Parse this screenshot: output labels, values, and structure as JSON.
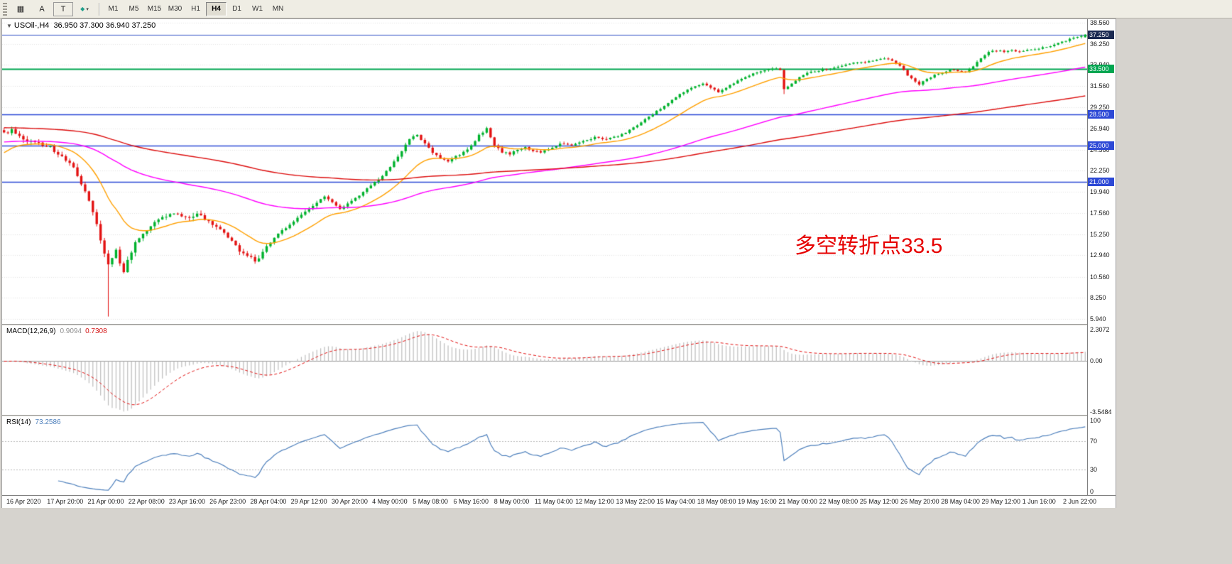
{
  "toolbar": {
    "tools": [
      {
        "id": "new-order",
        "glyph": "▦"
      },
      {
        "id": "cursor",
        "glyph": "A"
      },
      {
        "id": "text",
        "glyph": "T"
      },
      {
        "id": "objects",
        "glyph": "◆",
        "caret": "▾"
      }
    ],
    "timeframes": [
      "M1",
      "M5",
      "M15",
      "M30",
      "H1",
      "H4",
      "D1",
      "W1",
      "MN"
    ],
    "active_timeframe": "H4"
  },
  "chart": {
    "title_symbol": "USOil-,H4",
    "title_ohlc": "36.950 37.300 36.940 37.250",
    "annotation": {
      "text": "多空转折点33.5",
      "color": "#e60000"
    }
  },
  "colors": {
    "up": "#00b22d",
    "down": "#e31212",
    "grid": "#e3e3e3",
    "macd_hist": "#bdbdbd",
    "macd_signal": "#e31212",
    "rsi_line": "#4f81bd",
    "level_dotted": "#b9b9b9",
    "zero_line": "#9a9a9a"
  },
  "chart_data": {
    "type": "candlestick",
    "symbol": "USOil-",
    "timeframe": "H4",
    "title": "USOil-,H4 36.950 37.300 36.940 37.250",
    "current_candle": {
      "open": 36.95,
      "high": 37.3,
      "low": 36.94,
      "close": 37.25
    },
    "candle_count": 281,
    "y_range": [
      5.39,
      38.95
    ],
    "y_ticks": [
      "38.560",
      "36.250",
      "33.940",
      "31.560",
      "29.250",
      "26.940",
      "24.560",
      "22.250",
      "19.940",
      "17.560",
      "15.250",
      "12.940",
      "10.560",
      "8.250",
      "5.940"
    ],
    "x_labels": [
      "16 Apr 2020",
      "17 Apr 20:00",
      "21 Apr 00:00",
      "22 Apr 08:00",
      "23 Apr 16:00",
      "26 Apr 23:00",
      "28 Apr 04:00",
      "29 Apr 12:00",
      "30 Apr 20:00",
      "4 May 00:00",
      "5 May 08:00",
      "6 May 16:00",
      "8 May 00:00",
      "11 May 04:00",
      "12 May 12:00",
      "13 May 22:00",
      "15 May 04:00",
      "18 May 08:00",
      "19 May 16:00",
      "21 May 00:00",
      "22 May 08:00",
      "25 May 12:00",
      "26 May 20:00",
      "28 May 04:00",
      "29 May 12:00",
      "1 Jun 16:00",
      "2 Jun 22:00"
    ],
    "hlines": [
      {
        "price": 37.25,
        "label": "37.250",
        "color": "#3a57c9",
        "bg": "#1b2a52",
        "width": 1
      },
      {
        "price": 33.5,
        "label": "33.500",
        "color": "#00a651",
        "bg": "#00a651",
        "width": 2
      },
      {
        "price": 28.5,
        "label": "28.500",
        "color": "#2d49d6",
        "bg": "#2d49d6",
        "width": 1.4
      },
      {
        "price": 25.0,
        "label": "25.000",
        "color": "#2d49d6",
        "bg": "#2d49d6",
        "width": 1.4
      },
      {
        "price": 21.0,
        "label": "21.000",
        "color": "#2d49d6",
        "bg": "#2d49d6",
        "width": 1.4
      }
    ],
    "moving_averages": [
      {
        "name": "ma-fast",
        "period": 18,
        "color": "#ffa000",
        "init": 24.0
      },
      {
        "name": "ma-mid",
        "period": 90,
        "color": "#ff00ff",
        "init": 25.4
      },
      {
        "name": "ma-slow",
        "period": 200,
        "color": "#dd0f0f",
        "init": 27.0
      }
    ],
    "price_anchors": [
      [
        0,
        26.4
      ],
      [
        2,
        26.7
      ],
      [
        4,
        26.1
      ],
      [
        6,
        25.6
      ],
      [
        8,
        25.4
      ],
      [
        10,
        25.1
      ],
      [
        12,
        24.8
      ],
      [
        14,
        24.2
      ],
      [
        16,
        23.4
      ],
      [
        18,
        22.6
      ],
      [
        20,
        20.9
      ],
      [
        22,
        18.9
      ],
      [
        24,
        16.3
      ],
      [
        26,
        13.2
      ],
      [
        27,
        11.8,
        6.2
      ],
      [
        28,
        12.6
      ],
      [
        29,
        13.4
      ],
      [
        30,
        12.2
      ],
      [
        31,
        11.2
      ],
      [
        32,
        12.4
      ],
      [
        34,
        14.3
      ],
      [
        36,
        15.3
      ],
      [
        38,
        16.2
      ],
      [
        40,
        16.9
      ],
      [
        42,
        17.3
      ],
      [
        44,
        17.6
      ],
      [
        46,
        17.4
      ],
      [
        48,
        17.1
      ],
      [
        50,
        17.5
      ],
      [
        52,
        17.0
      ],
      [
        54,
        16.4
      ],
      [
        56,
        15.8
      ],
      [
        58,
        14.9
      ],
      [
        60,
        13.9
      ],
      [
        62,
        13.1
      ],
      [
        64,
        12.6
      ],
      [
        65,
        12.3
      ],
      [
        67,
        13.2
      ],
      [
        69,
        14.5
      ],
      [
        71,
        15.4
      ],
      [
        73,
        15.9
      ],
      [
        75,
        16.6
      ],
      [
        77,
        17.4
      ],
      [
        79,
        18.0
      ],
      [
        81,
        18.8
      ],
      [
        83,
        19.4
      ],
      [
        85,
        18.9
      ],
      [
        87,
        18.1
      ],
      [
        89,
        18.6
      ],
      [
        91,
        19.3
      ],
      [
        93,
        19.9
      ],
      [
        95,
        20.6
      ],
      [
        97,
        21.3
      ],
      [
        99,
        22.2
      ],
      [
        101,
        23.2
      ],
      [
        103,
        24.5
      ],
      [
        105,
        25.7
      ],
      [
        107,
        26.2
      ],
      [
        109,
        25.2
      ],
      [
        111,
        24.3
      ],
      [
        113,
        23.6
      ],
      [
        115,
        23.3
      ],
      [
        117,
        23.8
      ],
      [
        119,
        24.3
      ],
      [
        121,
        25.0
      ],
      [
        123,
        26.2
      ],
      [
        125,
        26.9
      ],
      [
        126,
        26.0
      ],
      [
        127,
        25.1
      ],
      [
        129,
        24.3
      ],
      [
        131,
        24.1
      ],
      [
        133,
        24.5
      ],
      [
        135,
        24.8
      ],
      [
        137,
        24.5
      ],
      [
        139,
        24.3
      ],
      [
        141,
        24.7
      ],
      [
        143,
        25.0
      ],
      [
        145,
        25.3
      ],
      [
        147,
        25.1
      ],
      [
        149,
        25.3
      ],
      [
        151,
        25.6
      ],
      [
        153,
        25.9
      ],
      [
        155,
        25.7
      ],
      [
        157,
        25.8
      ],
      [
        159,
        26.1
      ],
      [
        161,
        26.5
      ],
      [
        163,
        27.0
      ],
      [
        165,
        27.6
      ],
      [
        167,
        28.2
      ],
      [
        169,
        28.8
      ],
      [
        171,
        29.4
      ],
      [
        173,
        30.0
      ],
      [
        175,
        30.7
      ],
      [
        177,
        31.2
      ],
      [
        179,
        31.6
      ],
      [
        181,
        31.9
      ],
      [
        183,
        31.4
      ],
      [
        185,
        30.9
      ],
      [
        187,
        31.4
      ],
      [
        189,
        31.9
      ],
      [
        191,
        32.4
      ],
      [
        193,
        32.8
      ],
      [
        195,
        33.1
      ],
      [
        197,
        33.3
      ],
      [
        199,
        33.5
      ],
      [
        201,
        33.4
      ],
      [
        202,
        31.2,
        30.7
      ],
      [
        204,
        31.9
      ],
      [
        206,
        32.5
      ],
      [
        208,
        33.0
      ],
      [
        210,
        33.2
      ],
      [
        212,
        33.4
      ],
      [
        214,
        33.5
      ],
      [
        216,
        33.7
      ],
      [
        218,
        33.9
      ],
      [
        220,
        34.1
      ],
      [
        222,
        34.2
      ],
      [
        224,
        34.3
      ],
      [
        226,
        34.5
      ],
      [
        228,
        34.6
      ],
      [
        230,
        34.4
      ],
      [
        232,
        33.8
      ],
      [
        234,
        32.8
      ],
      [
        236,
        32.1
      ],
      [
        237,
        31.8
      ],
      [
        239,
        32.3
      ],
      [
        241,
        32.8
      ],
      [
        243,
        33.1
      ],
      [
        245,
        33.4
      ],
      [
        247,
        33.3
      ],
      [
        249,
        33.1
      ],
      [
        251,
        33.8
      ],
      [
        253,
        34.7
      ],
      [
        255,
        35.3
      ],
      [
        257,
        35.5
      ],
      [
        259,
        35.4
      ],
      [
        261,
        35.5
      ],
      [
        263,
        35.4
      ],
      [
        265,
        35.5
      ],
      [
        267,
        35.6
      ],
      [
        269,
        35.8
      ],
      [
        271,
        36.0
      ],
      [
        273,
        36.3
      ],
      [
        275,
        36.6
      ],
      [
        277,
        36.9
      ],
      [
        279,
        37.1
      ],
      [
        280,
        37.25
      ]
    ],
    "indicators": {
      "macd": {
        "label": "MACD(12,26,9)",
        "value_main": "0.9094",
        "value_signal": "0.7308",
        "params": [
          12,
          26,
          9
        ],
        "range": [
          -3.5484,
          2.3072
        ],
        "axis": [
          {
            "label": "2.3072",
            "value": 2.3072
          },
          {
            "label": "0.00",
            "value": 0
          },
          {
            "label": "-3.5484",
            "value": -3.5484
          }
        ]
      },
      "rsi": {
        "label": "RSI(14)",
        "value": "73.2586",
        "period": 14,
        "levels": [
          {
            "label": "100",
            "value": 100
          },
          {
            "label": "70",
            "value": 70
          },
          {
            "label": "30",
            "value": 30
          },
          {
            "label": "0",
            "value": 0
          }
        ],
        "dotted_levels": [
          70,
          30
        ]
      }
    }
  }
}
